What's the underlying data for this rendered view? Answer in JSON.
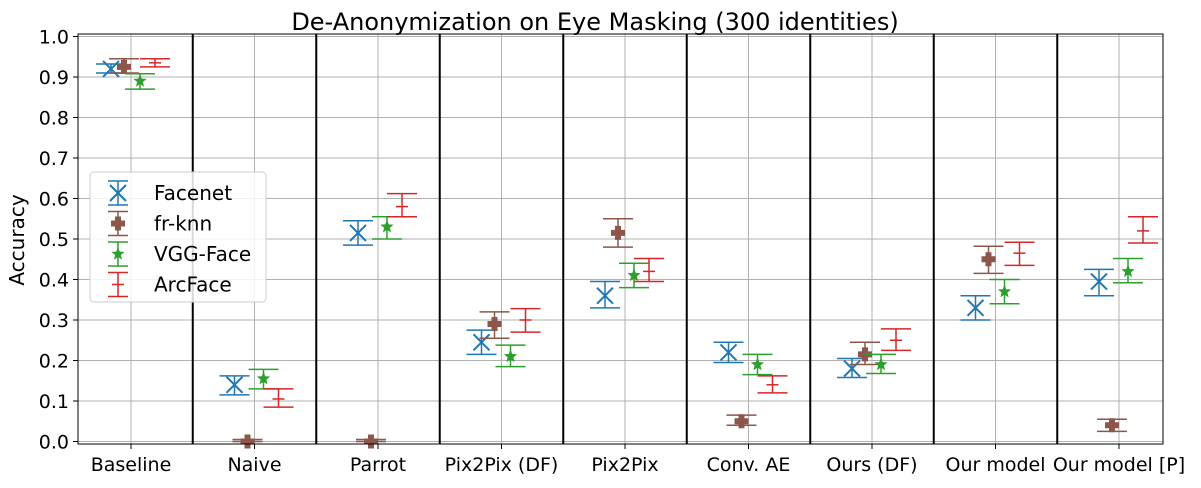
{
  "chart_data": {
    "type": "scatter",
    "title": "De-Anonymization on Eye Masking (300 identities)",
    "xlabel": "",
    "ylabel": "Accuracy",
    "ylim": [
      0,
      1.0
    ],
    "yticks": [
      "0.0",
      "0.1",
      "0.2",
      "0.3",
      "0.4",
      "0.5",
      "0.6",
      "0.7",
      "0.8",
      "0.9",
      "1.0"
    ],
    "categories": [
      "Baseline",
      "Naive",
      "Parrot",
      "Pix2Pix (DF)",
      "Pix2Pix",
      "Conv. AE",
      "Ours (DF)",
      "Our model",
      "Our model [P]"
    ],
    "grid": true,
    "legend_position": "center-left",
    "series": [
      {
        "name": "Facenet",
        "color": "#1f77b4",
        "marker": "x",
        "values": [
          0.92,
          0.14,
          0.515,
          0.245,
          0.36,
          0.22,
          0.18,
          0.33,
          0.395
        ],
        "err_low": [
          0.91,
          0.115,
          0.485,
          0.215,
          0.33,
          0.195,
          0.158,
          0.3,
          0.36
        ],
        "err_high": [
          0.932,
          0.162,
          0.545,
          0.275,
          0.395,
          0.245,
          0.205,
          0.36,
          0.425
        ]
      },
      {
        "name": "fr-knn",
        "color": "#8c564b",
        "marker": "plus",
        "values": [
          0.925,
          0.0,
          0.0,
          0.29,
          0.515,
          0.05,
          0.215,
          0.45,
          0.04
        ],
        "err_low": [
          0.91,
          0.0,
          0.0,
          0.255,
          0.48,
          0.04,
          0.19,
          0.415,
          0.025
        ],
        "err_high": [
          0.945,
          0.005,
          0.005,
          0.32,
          0.55,
          0.065,
          0.245,
          0.482,
          0.055
        ]
      },
      {
        "name": "VGG-Face",
        "color": "#2ca02c",
        "marker": "star",
        "values": [
          0.89,
          0.155,
          0.53,
          0.21,
          0.41,
          0.19,
          0.19,
          0.37,
          0.42
        ],
        "err_low": [
          0.87,
          0.13,
          0.5,
          0.185,
          0.38,
          0.165,
          0.168,
          0.34,
          0.392
        ],
        "err_high": [
          0.908,
          0.178,
          0.555,
          0.238,
          0.44,
          0.215,
          0.215,
          0.4,
          0.452
        ]
      },
      {
        "name": "ArcFace",
        "color": "#d62728",
        "marker": "tick",
        "values": [
          0.935,
          0.105,
          0.58,
          0.3,
          0.42,
          0.14,
          0.25,
          0.465,
          0.52
        ],
        "err_low": [
          0.925,
          0.085,
          0.555,
          0.27,
          0.395,
          0.12,
          0.225,
          0.435,
          0.49
        ],
        "err_high": [
          0.945,
          0.13,
          0.612,
          0.328,
          0.452,
          0.162,
          0.278,
          0.492,
          0.555
        ]
      }
    ]
  }
}
